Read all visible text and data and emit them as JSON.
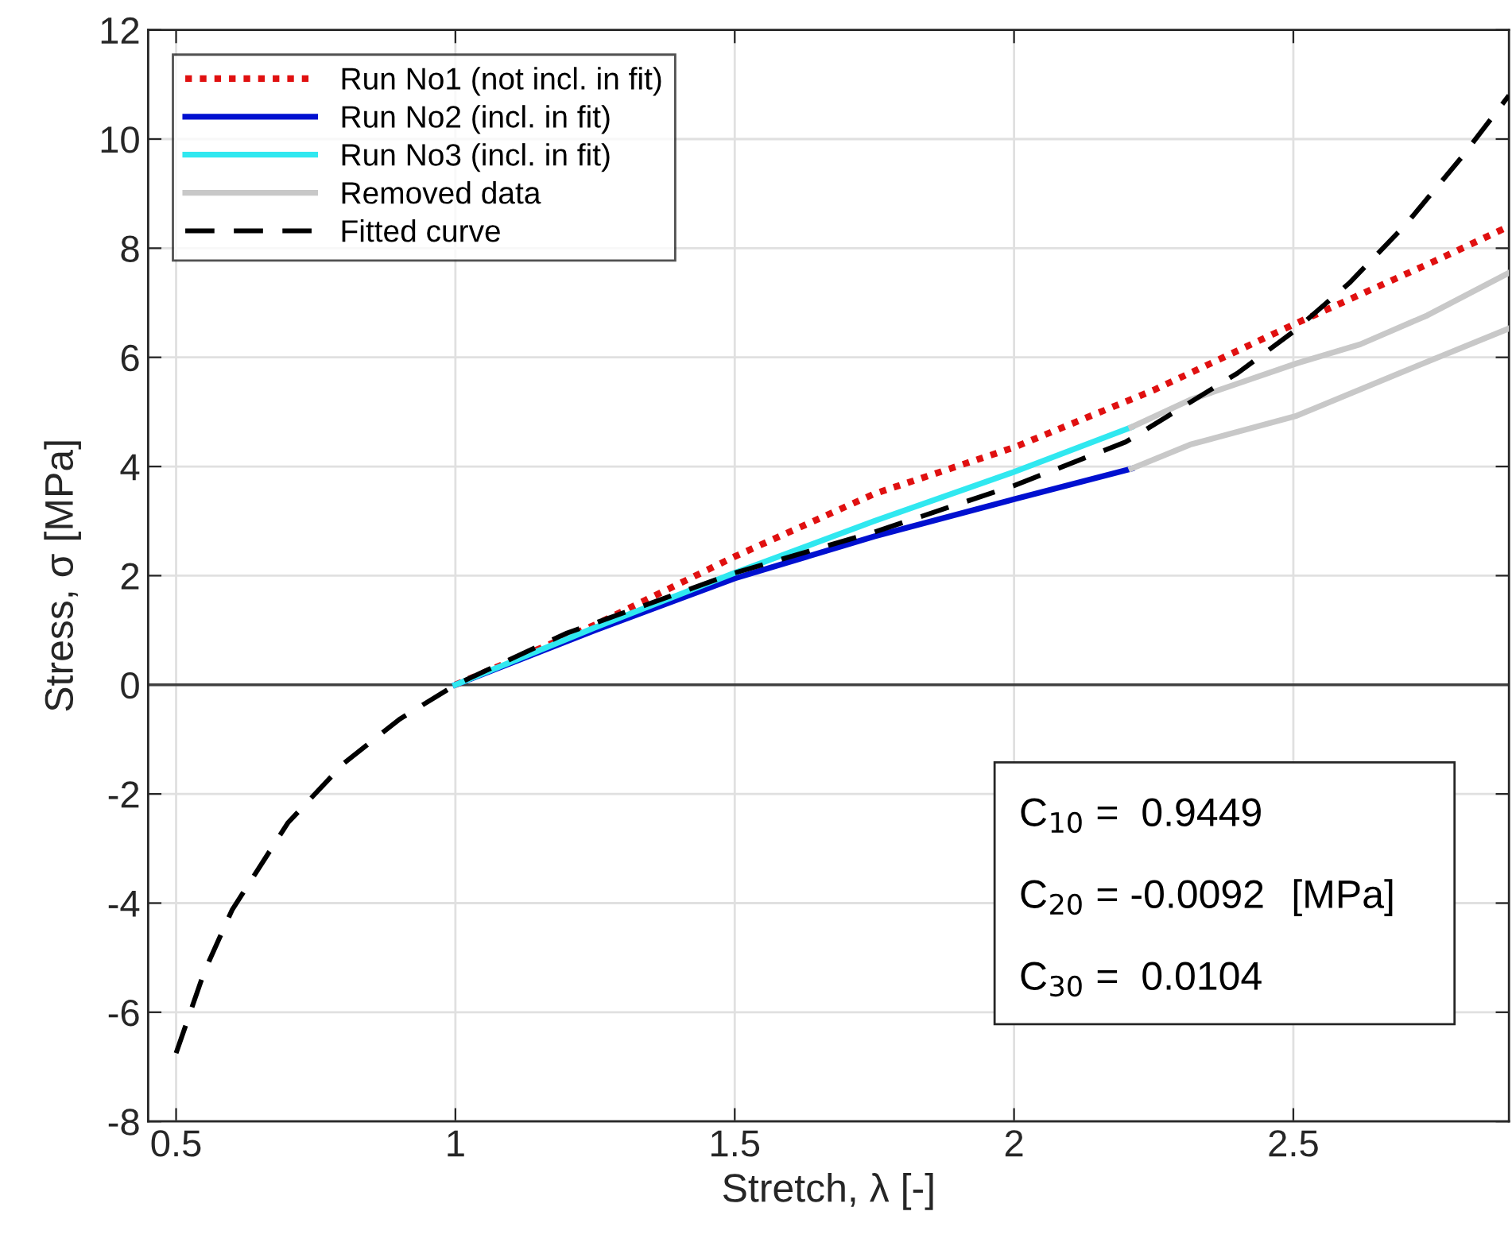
{
  "chart_data": {
    "type": "line",
    "xlabel": "Stretch, λ [-]",
    "ylabel": "Stress, σ [MPa]",
    "xlim": [
      0.45,
      2.886
    ],
    "ylim": [
      -8,
      12
    ],
    "xticks": [
      0.5,
      1,
      1.5,
      2,
      2.5
    ],
    "yticks": [
      -8,
      -6,
      -4,
      -2,
      0,
      2,
      4,
      6,
      8,
      10,
      12
    ],
    "grid": true,
    "legend": "top left",
    "ref_lines": [
      {
        "axis": "y",
        "value": 0,
        "color": "#404040",
        "line_style": "solid"
      }
    ],
    "annotations": [
      "C$_{10}$ =  0.9449",
      "C$_{20}$ = -0.0092",
      "C$_{30}$ =  0.0104",
      "[MPa]"
    ],
    "series": [
      {
        "name": "Run No1 (not incl. in fit)",
        "color": "#e01010",
        "line_style": "dotted",
        "x": [
          1.0,
          1.25,
          1.5,
          1.75,
          2.0,
          2.25,
          2.5,
          2.75,
          2.886
        ],
        "values": [
          0,
          1.1,
          2.35,
          3.5,
          4.35,
          5.4,
          6.6,
          7.75,
          8.4
        ]
      },
      {
        "name": "Run No2 (incl. in fit)",
        "color": "#0010d0",
        "line_style": "solid",
        "x": [
          1.0,
          1.25,
          1.5,
          1.75,
          2.0,
          2.21
        ],
        "values": [
          0,
          1.0,
          1.95,
          2.72,
          3.4,
          3.96
        ]
      },
      {
        "name": "Run No3 (incl. in fit)",
        "color": "#30e8f0",
        "line_style": "solid",
        "x": [
          1.0,
          1.25,
          1.5,
          1.75,
          2.0,
          2.21
        ],
        "values": [
          0,
          1.05,
          2.05,
          3.0,
          3.9,
          4.72
        ]
      },
      {
        "name": "Removed data",
        "color": "#c8c8c8",
        "line_style": "solid",
        "x": [
          2.21,
          2.315,
          2.506,
          2.62,
          2.74,
          2.886
        ],
        "values": [
          4.72,
          5.22,
          5.89,
          6.24,
          6.77,
          7.55
        ]
      },
      {
        "color": "#c8c8c8",
        "line_style": "solid",
        "x": [
          2.21,
          2.315,
          2.506,
          2.69,
          2.886
        ],
        "values": [
          3.96,
          4.4,
          4.93,
          5.71,
          6.53
        ]
      },
      {
        "name": "Fitted curve",
        "color": "#000000",
        "line_style": "dashed",
        "x": [
          0.5,
          0.55,
          0.6,
          0.7,
          0.8,
          0.9,
          1.0,
          1.2,
          1.4,
          1.5,
          1.75,
          2.0,
          2.2,
          2.4,
          2.5,
          2.6,
          2.7,
          2.8,
          2.886
        ],
        "values": [
          -6.75,
          -5.27,
          -4.13,
          -2.53,
          -1.44,
          -0.63,
          0,
          0.95,
          1.68,
          2.05,
          2.8,
          3.65,
          4.45,
          5.71,
          6.47,
          7.36,
          8.42,
          9.65,
          10.8
        ]
      }
    ]
  }
}
